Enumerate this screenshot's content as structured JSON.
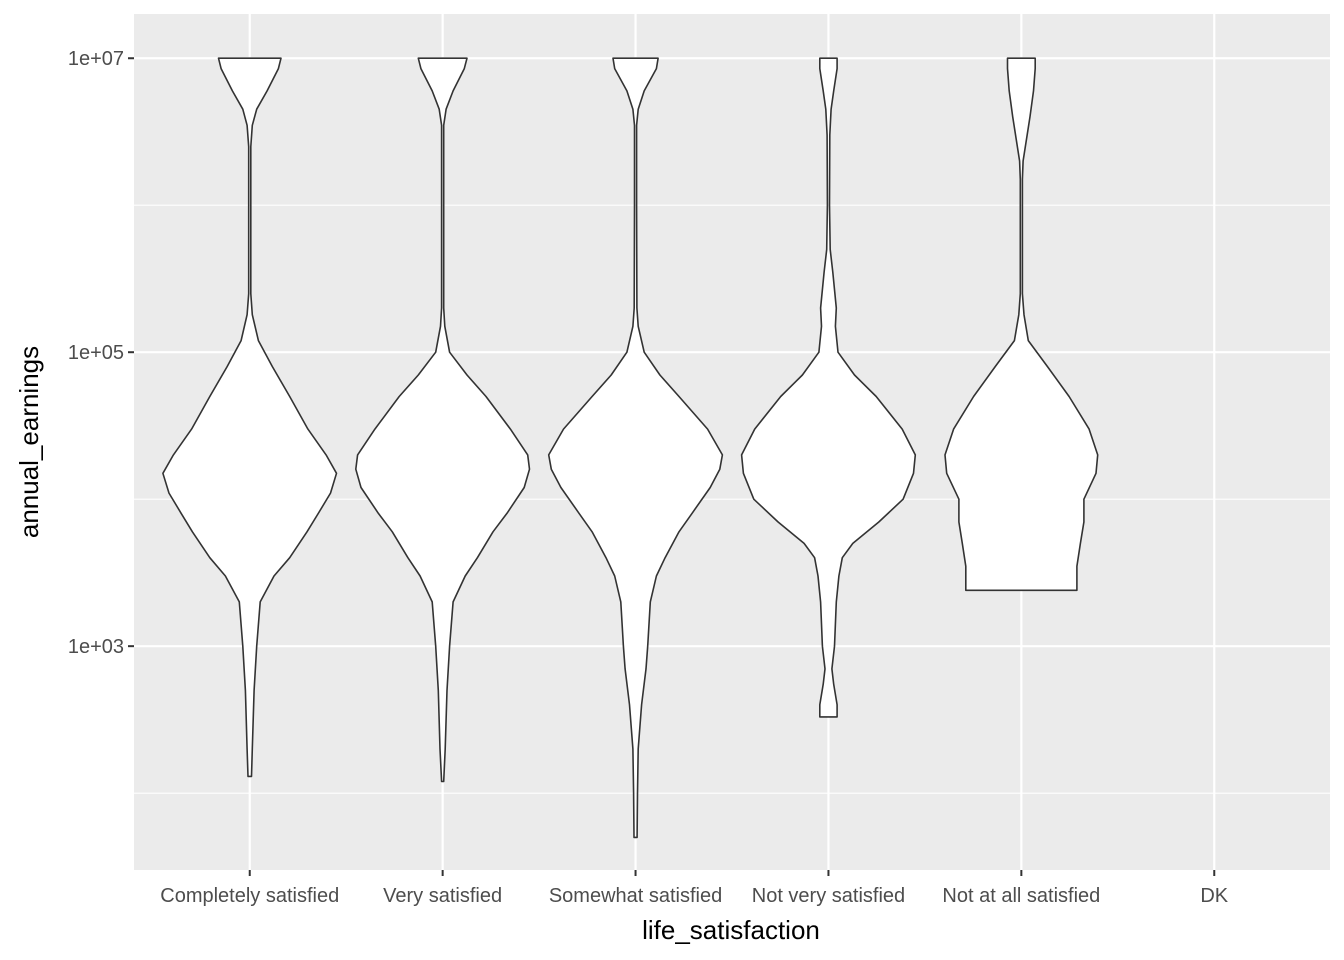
{
  "chart_data": {
    "type": "violin",
    "xlabel": "life_satisfaction",
    "ylabel": "annual_earnings",
    "y_scale": "log10",
    "ylim": [
      30,
      20000000
    ],
    "y_ticks": [
      {
        "value": 1000,
        "label": "1e+03"
      },
      {
        "value": 100000,
        "label": "1e+05"
      },
      {
        "value": 10000000,
        "label": "1e+07"
      }
    ],
    "y_minor_ticks": [
      100,
      10000,
      1000000
    ],
    "categories": [
      "Completely satisfied",
      "Very satisfied",
      "Somewhat satisfied",
      "Not very satisfied",
      "Not at all satisfied",
      "DK"
    ],
    "panel_background": "#ebebeb",
    "grid": true,
    "violin_fill": "#ffffff",
    "violin_stroke": "#333333",
    "violins": [
      {
        "category": "Completely satisfied",
        "profile": [
          [
            10000000,
            0.36
          ],
          [
            8500000,
            0.33
          ],
          [
            6000000,
            0.2
          ],
          [
            4500000,
            0.08
          ],
          [
            3500000,
            0.03
          ],
          [
            2500000,
            0.012
          ],
          [
            1000000,
            0.012
          ],
          [
            250000,
            0.012
          ],
          [
            180000,
            0.03
          ],
          [
            120000,
            0.1
          ],
          [
            80000,
            0.26
          ],
          [
            50000,
            0.46
          ],
          [
            30000,
            0.67
          ],
          [
            20000,
            0.88
          ],
          [
            15000,
            1.0
          ],
          [
            11000,
            0.93
          ],
          [
            8000,
            0.79
          ],
          [
            6000,
            0.66
          ],
          [
            4000,
            0.46
          ],
          [
            3000,
            0.28
          ],
          [
            2000,
            0.12
          ],
          [
            1000,
            0.08
          ],
          [
            500,
            0.05
          ],
          [
            200,
            0.03
          ],
          [
            130,
            0.02
          ]
        ]
      },
      {
        "category": "Very satisfied",
        "profile": [
          [
            10000000,
            0.28
          ],
          [
            8500000,
            0.25
          ],
          [
            6000000,
            0.12
          ],
          [
            4500000,
            0.04
          ],
          [
            3500000,
            0.012
          ],
          [
            1000000,
            0.012
          ],
          [
            200000,
            0.012
          ],
          [
            150000,
            0.025
          ],
          [
            100000,
            0.08
          ],
          [
            70000,
            0.28
          ],
          [
            50000,
            0.5
          ],
          [
            30000,
            0.78
          ],
          [
            20000,
            0.98
          ],
          [
            16000,
            1.0
          ],
          [
            12000,
            0.94
          ],
          [
            8000,
            0.74
          ],
          [
            6000,
            0.58
          ],
          [
            4000,
            0.4
          ],
          [
            3000,
            0.26
          ],
          [
            2000,
            0.12
          ],
          [
            1000,
            0.08
          ],
          [
            500,
            0.05
          ],
          [
            200,
            0.03
          ],
          [
            120,
            0.012
          ]
        ]
      },
      {
        "category": "Somewhat satisfied",
        "profile": [
          [
            10000000,
            0.26
          ],
          [
            8500000,
            0.24
          ],
          [
            6000000,
            0.1
          ],
          [
            4500000,
            0.03
          ],
          [
            3500000,
            0.012
          ],
          [
            1000000,
            0.012
          ],
          [
            200000,
            0.015
          ],
          [
            150000,
            0.03
          ],
          [
            100000,
            0.1
          ],
          [
            70000,
            0.28
          ],
          [
            50000,
            0.5
          ],
          [
            30000,
            0.83
          ],
          [
            20000,
            1.0
          ],
          [
            16000,
            0.97
          ],
          [
            12000,
            0.86
          ],
          [
            8000,
            0.65
          ],
          [
            6000,
            0.5
          ],
          [
            4000,
            0.34
          ],
          [
            3000,
            0.24
          ],
          [
            2000,
            0.17
          ],
          [
            1000,
            0.14
          ],
          [
            700,
            0.12
          ],
          [
            400,
            0.07
          ],
          [
            200,
            0.03
          ],
          [
            100,
            0.022
          ],
          [
            50,
            0.018
          ]
        ]
      },
      {
        "category": "Not very satisfied",
        "profile": [
          [
            10000000,
            0.1
          ],
          [
            8500000,
            0.1
          ],
          [
            6000000,
            0.06
          ],
          [
            4500000,
            0.03
          ],
          [
            3000000,
            0.015
          ],
          [
            1000000,
            0.012
          ],
          [
            500000,
            0.02
          ],
          [
            350000,
            0.05
          ],
          [
            200000,
            0.09
          ],
          [
            150000,
            0.08
          ],
          [
            100000,
            0.11
          ],
          [
            70000,
            0.3
          ],
          [
            50000,
            0.55
          ],
          [
            30000,
            0.85
          ],
          [
            20000,
            1.0
          ],
          [
            15000,
            0.98
          ],
          [
            10000,
            0.86
          ],
          [
            7000,
            0.58
          ],
          [
            5000,
            0.28
          ],
          [
            4000,
            0.16
          ],
          [
            3000,
            0.12
          ],
          [
            2000,
            0.09
          ],
          [
            1000,
            0.07
          ],
          [
            700,
            0.04
          ],
          [
            550,
            0.06
          ],
          [
            400,
            0.1
          ],
          [
            330,
            0.1
          ]
        ]
      },
      {
        "category": "Not at all satisfied",
        "profile": [
          [
            10000000,
            0.16
          ],
          [
            8500000,
            0.16
          ],
          [
            6000000,
            0.14
          ],
          [
            4000000,
            0.1
          ],
          [
            2000000,
            0.02
          ],
          [
            1500000,
            0.012
          ],
          [
            1000000,
            0.012
          ],
          [
            250000,
            0.012
          ],
          [
            180000,
            0.03
          ],
          [
            120000,
            0.08
          ],
          [
            80000,
            0.3
          ],
          [
            50000,
            0.55
          ],
          [
            30000,
            0.78
          ],
          [
            20000,
            0.88
          ],
          [
            15000,
            0.86
          ],
          [
            10000,
            0.72
          ],
          [
            7000,
            0.72
          ],
          [
            5000,
            0.68
          ],
          [
            3500,
            0.64
          ],
          [
            2500,
            0.64
          ],
          [
            2400,
            0.64
          ]
        ]
      }
    ]
  }
}
